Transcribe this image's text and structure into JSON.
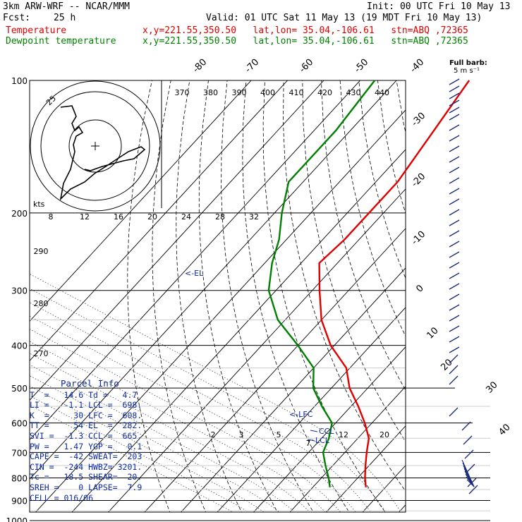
{
  "header": {
    "title": "3km ARW-WRF -- NCAR/MMM",
    "init": "Init: 00 UTC Fri 10 May 13",
    "fcst_label": "Fcst:",
    "fcst_value": "25 h",
    "valid": "Valid: 01 UTC Sat 11 May 13 (19 MDT Fri 10 May 13)",
    "temp_label": "Temperature",
    "dew_label": "Dewpoint temperature",
    "temp_loc": "x,y=221.55,350.50   lat,lon= 35.04,-106.61   stn=ABQ ,72365",
    "dew_loc": "x,y=221.55,350.50   lat,lon= 35.04,-106.61   stn=ABQ ,72365"
  },
  "colors": {
    "temperature": "#e00000",
    "dewpoint": "#008000",
    "annotation": "#0b2aa0"
  },
  "barb_legend": {
    "line1": "Full barb:",
    "line2": "5 m s⁻¹"
  },
  "parcel_info": {
    "title": "Parcel Info",
    "rows": [
      "T  =   14.6 Td =   4.7",
      "LI =   -1.1 LCL =  698.",
      "K  =     30 LFC =  608.",
      "TT =     54 EL  =  282.",
      "SVI =  -1.3 CCL =  665.",
      "PW =   1.47 YGP =   0.1",
      "CAPE =  -42 SWEAT=  203",
      "CIN =  -244 HWBZ= 3201.",
      "Tc =   18.5 SHEAR=  20.",
      "SREH =    0 LAPSE=  7.9",
      "CELL = 016/06"
    ]
  },
  "chart_data": {
    "type": "line",
    "subtype": "skew-T log-P sounding",
    "pressure_ticks": [
      "100",
      "200",
      "300",
      "400",
      "500",
      "600",
      "700",
      "800",
      "900",
      "1000"
    ],
    "isotherm_labels": [
      "-80",
      "-70",
      "-60",
      "-50",
      "-40",
      "-30",
      "-20",
      "-10",
      "0",
      "10",
      "20",
      "30",
      "40"
    ],
    "theta_labels": [
      "370",
      "380",
      "390",
      "400",
      "410",
      "420",
      "430",
      "440"
    ],
    "lower_theta_labels": [
      "290",
      "280",
      "270"
    ],
    "mixing_ratio_labels": [
      "2",
      "3",
      "5",
      "7",
      "12",
      "20"
    ],
    "hodo_speed_labels": [
      "8",
      "12",
      "16",
      "20",
      "24",
      "28",
      "32"
    ],
    "hodo_units": "kts",
    "hodo_ring_label": "25",
    "annotations": {
      "el": "<-EL",
      "lfc": "<-LFC",
      "ccl": "CCL",
      "lcl": "LCL"
    },
    "series": [
      {
        "name": "Temperature",
        "p": [
          100,
          130,
          170,
          200,
          230,
          260,
          300,
          350,
          400,
          450,
          500,
          550,
          600,
          650,
          700,
          750,
          800,
          840
        ],
        "t": [
          -60,
          -57,
          -54,
          -54,
          -54,
          -55,
          -48,
          -40,
          -31,
          -21,
          -15,
          -8,
          -2,
          3,
          6,
          9,
          12,
          14.6
        ]
      },
      {
        "name": "Dewpoint temperature",
        "p": [
          100,
          130,
          170,
          200,
          230,
          260,
          300,
          350,
          400,
          450,
          500,
          550,
          600,
          650,
          700,
          750,
          800,
          840
        ],
        "t": [
          -86,
          -84,
          -84,
          -78,
          -72,
          -68,
          -62,
          -52,
          -40,
          -30,
          -25,
          -18,
          -11,
          -8,
          -6,
          -2,
          2,
          4.7
        ]
      }
    ]
  }
}
